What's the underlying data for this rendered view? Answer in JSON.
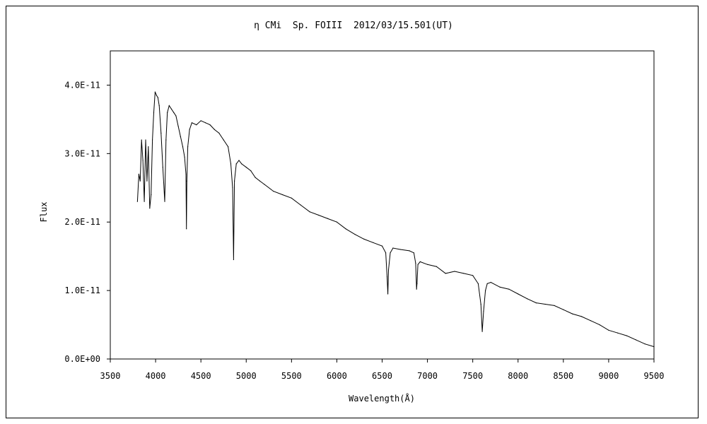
{
  "chart_data": {
    "type": "line",
    "title": "η CMi  Sp. FOIII  2012/03/15.501(UT)",
    "xlabel": "Wavelength(Å)",
    "ylabel": "Flux",
    "xlim": [
      3500,
      9500
    ],
    "ylim": [
      0,
      4.5e-11
    ],
    "xticks": [
      3500,
      4000,
      4500,
      5000,
      5500,
      6000,
      6500,
      7000,
      7500,
      8000,
      8500,
      9000,
      9500
    ],
    "xtick_labels": [
      "3500",
      "4000",
      "4500",
      "5000",
      "5500",
      "6000",
      "6500",
      "7000",
      "7500",
      "8000",
      "8500",
      "9000",
      "9500"
    ],
    "yticks": [
      0,
      1e-11,
      2e-11,
      3e-11,
      4e-11
    ],
    "ytick_labels": [
      "0.0E+00",
      "1.0E-11",
      "2.0E-11",
      "3.0E-11",
      "4.0E-11"
    ],
    "grid": false,
    "series": [
      {
        "color": "#000000",
        "x": [
          3800,
          3815,
          3830,
          3845,
          3860,
          3875,
          3890,
          3905,
          3920,
          3935,
          3950,
          3965,
          3980,
          3995,
          4010,
          4025,
          4040,
          4060,
          4080,
          4101,
          4115,
          4130,
          4150,
          4175,
          4200,
          4225,
          4250,
          4275,
          4300,
          4320,
          4335,
          4340,
          4345,
          4355,
          4375,
          4400,
          4450,
          4500,
          4550,
          4600,
          4650,
          4700,
          4750,
          4800,
          4830,
          4850,
          4861,
          4870,
          4890,
          4920,
          4950,
          5000,
          5050,
          5100,
          5150,
          5200,
          5300,
          5400,
          5500,
          5600,
          5700,
          5800,
          5900,
          6000,
          6100,
          6200,
          6300,
          6400,
          6500,
          6540,
          6555,
          6563,
          6570,
          6590,
          6620,
          6700,
          6800,
          6850,
          6870,
          6880,
          6885,
          6895,
          6920,
          7000,
          7100,
          7200,
          7300,
          7400,
          7500,
          7560,
          7590,
          7605,
          7620,
          7640,
          7660,
          7700,
          7800,
          7900,
          8000,
          8100,
          8200,
          8300,
          8400,
          8500,
          8600,
          8700,
          8800,
          8900,
          9000,
          9100,
          9200,
          9300,
          9400,
          9500
        ],
        "y": [
          2.3e-11,
          2.7e-11,
          2.6e-11,
          3.2e-11,
          2.9e-11,
          2.3e-11,
          3.2e-11,
          2.6e-11,
          3.1e-11,
          2.2e-11,
          2.4e-11,
          3.2e-11,
          3.6e-11,
          3.9e-11,
          3.85e-11,
          3.82e-11,
          3.7e-11,
          3.3e-11,
          2.8e-11,
          2.3e-11,
          3.2e-11,
          3.6e-11,
          3.7e-11,
          3.65e-11,
          3.6e-11,
          3.55e-11,
          3.4e-11,
          3.25e-11,
          3.1e-11,
          2.95e-11,
          2.7e-11,
          1.9e-11,
          2.6e-11,
          3.1e-11,
          3.35e-11,
          3.45e-11,
          3.42e-11,
          3.48e-11,
          3.45e-11,
          3.42e-11,
          3.35e-11,
          3.3e-11,
          3.2e-11,
          3.1e-11,
          2.85e-11,
          2.5e-11,
          1.45e-11,
          2.6e-11,
          2.85e-11,
          2.9e-11,
          2.85e-11,
          2.8e-11,
          2.75e-11,
          2.65e-11,
          2.6e-11,
          2.55e-11,
          2.45e-11,
          2.4e-11,
          2.35e-11,
          2.25e-11,
          2.15e-11,
          2.1e-11,
          2.05e-11,
          2e-11,
          1.9e-11,
          1.82e-11,
          1.75e-11,
          1.7e-11,
          1.65e-11,
          1.55e-11,
          1.2e-11,
          9.5e-12,
          1.3e-11,
          1.55e-11,
          1.62e-11,
          1.6e-11,
          1.58e-11,
          1.55e-11,
          1.4e-11,
          1.02e-11,
          1.1e-11,
          1.38e-11,
          1.42e-11,
          1.38e-11,
          1.35e-11,
          1.25e-11,
          1.28e-11,
          1.25e-11,
          1.22e-11,
          1.1e-11,
          8e-12,
          4e-12,
          7e-12,
          1e-11,
          1.1e-11,
          1.12e-11,
          1.05e-11,
          1.02e-11,
          9.5e-12,
          8.8e-12,
          8.2e-12,
          8e-12,
          7.8e-12,
          7.2e-12,
          6.6e-12,
          6.2e-12,
          5.6e-12,
          5e-12,
          4.2e-12,
          3.8e-12,
          3.4e-12,
          2.8e-12,
          2.2e-12,
          1.8e-12
        ]
      }
    ]
  }
}
